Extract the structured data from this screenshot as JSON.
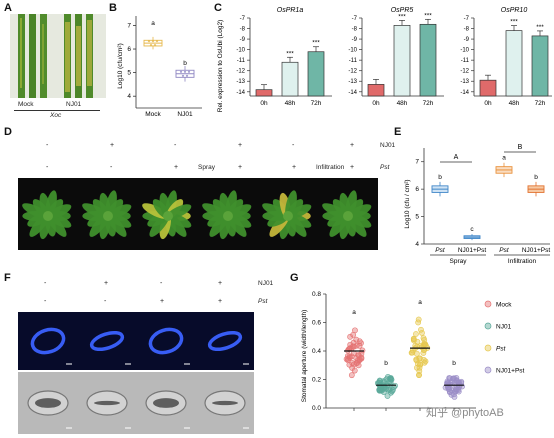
{
  "panels": {
    "a": {
      "label": "A",
      "mock": "Mock",
      "nj01": "NJ01",
      "pathogen": "Xoc"
    },
    "b": {
      "label": "B",
      "ylabel": "Log10 (cfu/cm²)",
      "categories": [
        "Mock",
        "NJ01"
      ],
      "letters": [
        "a",
        "b"
      ],
      "yticks": [
        "4",
        "5",
        "6",
        "7"
      ]
    },
    "c": {
      "label": "C",
      "ylabel": "Rel. expression to OsUbi (Log2)",
      "genes": [
        "OsPR1a",
        "OsPR5",
        "OsPR10"
      ],
      "timepoints": [
        "0h",
        "48h",
        "72h"
      ],
      "sig": "***",
      "yticks": [
        "-7",
        "-8",
        "-9",
        "-10",
        "-11",
        "-12",
        "-13",
        "-14"
      ]
    },
    "d": {
      "label": "D",
      "row1": [
        "-",
        "+",
        "-",
        "+",
        "-",
        "+"
      ],
      "row1_name": "NJ01",
      "row2": [
        "-",
        "-",
        "+",
        "+",
        "+",
        "+"
      ],
      "row2_name": "Pst",
      "spray": "Spray",
      "infiltration": "Infiltration"
    },
    "e": {
      "label": "E",
      "ylabel": "Log10 (cfu / cm²)",
      "yticks": [
        "4",
        "5",
        "6",
        "7"
      ],
      "xlabels": [
        "Pst",
        "NJ01+Pst",
        "Pst",
        "NJ01+Pst"
      ],
      "groups": [
        "Spray",
        "Infiltration"
      ],
      "letters_upper": [
        "A",
        "B"
      ],
      "letters_lower": [
        "b",
        "c",
        "a",
        "b"
      ]
    },
    "f": {
      "label": "F",
      "row1": [
        "-",
        "+",
        "-",
        "+"
      ],
      "row1_name": "NJ01",
      "row2": [
        "-",
        "-",
        "+",
        "+"
      ],
      "row2_name": "Pst"
    },
    "g": {
      "label": "G",
      "ylabel": "Stomatal aperture (width/length)",
      "yticks": [
        "0.0",
        "0.2",
        "0.4",
        "0.6",
        "0.8"
      ],
      "letters": [
        "a",
        "b",
        "a",
        "b"
      ],
      "legend": [
        "Mock",
        "NJ01",
        "Pst",
        "NJ01+Pst"
      ]
    }
  },
  "watermark": "知乎 @phytoAB",
  "chart_data": [
    {
      "type": "box",
      "title": "",
      "ylabel": "Log10 (cfu/cm²)",
      "categories": [
        "Mock",
        "NJ01"
      ],
      "values": [
        6.25,
        4.95
      ],
      "ylim": [
        3.5,
        7.4
      ]
    },
    {
      "type": "bar",
      "title": "OsPR1a",
      "categories": [
        "0h",
        "48h",
        "72h"
      ],
      "values": [
        -13.8,
        -11.2,
        -10.2
      ],
      "ylim": [
        -14.4,
        -7
      ]
    },
    {
      "type": "bar",
      "title": "OsPR5",
      "categories": [
        "0h",
        "48h",
        "72h"
      ],
      "values": [
        -13.3,
        -7.7,
        -7.6
      ],
      "ylim": [
        -14.4,
        -7
      ]
    },
    {
      "type": "bar",
      "title": "OsPR10",
      "categories": [
        "0h",
        "48h",
        "72h"
      ],
      "values": [
        -12.9,
        -8.2,
        -8.7
      ],
      "ylim": [
        -14.4,
        -7
      ]
    },
    {
      "type": "box",
      "title": "",
      "ylabel": "Log10 (cfu / cm²)",
      "categories": [
        "Pst",
        "NJ01+Pst",
        "Pst",
        "NJ01+Pst"
      ],
      "values": [
        6.0,
        4.25,
        6.7,
        6.0
      ],
      "ylim": [
        4,
        7.5
      ]
    },
    {
      "type": "scatter",
      "title": "",
      "ylabel": "Stomatal aperture (width/length)",
      "categories": [
        "Mock",
        "NJ01",
        "Pst",
        "NJ01+Pst"
      ],
      "values": [
        0.4,
        0.16,
        0.42,
        0.16
      ],
      "ylim": [
        0,
        0.8
      ]
    }
  ],
  "colors": {
    "mock": "#e57373",
    "nj01": "#5aa99a",
    "pst": "#e6c84f",
    "nj01pst": "#9b8ec7",
    "bar0": "#e06a6a",
    "bar48": "#dff1ee",
    "bar72": "#6fb6a6"
  }
}
